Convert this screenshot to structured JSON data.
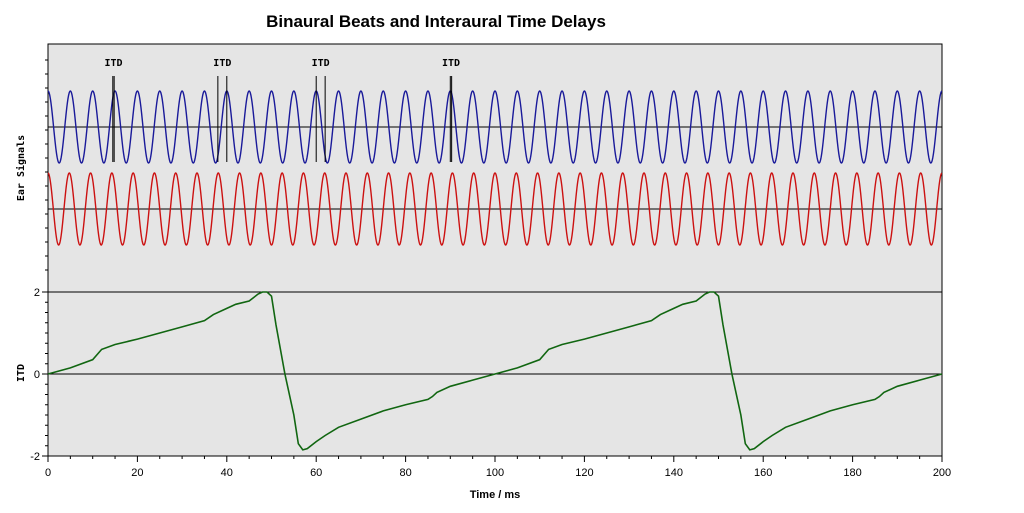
{
  "chart_data": {
    "type": "line",
    "title": "Binaural Beats and Interaural Time Delays",
    "xlabel": "Time / ms",
    "xlim": [
      0,
      200
    ],
    "x_ticks": [
      "0",
      "20",
      "40",
      "60",
      "80",
      "100",
      "120",
      "140",
      "160",
      "180",
      "200"
    ],
    "ear_signals": {
      "ylabel": "Ear Signals",
      "series": [
        {
          "color": "#1a1a9a",
          "frequency_hz": 200,
          "amplitude": 1
        },
        {
          "color": "#cc1111",
          "frequency_hz": 210,
          "amplitude": 1
        }
      ],
      "itd_markers": [
        {
          "label": "ITD",
          "time_ms": [
            14.5,
            14.8
          ]
        },
        {
          "label": "ITD",
          "time_ms": [
            38.0,
            40.0
          ]
        },
        {
          "label": "ITD",
          "time_ms": [
            60.0,
            62.0
          ]
        },
        {
          "label": "ITD",
          "time_ms": [
            90.0,
            90.3
          ]
        }
      ]
    },
    "itd_plot": {
      "ylabel": "ITD",
      "ylim": [
        -2,
        2
      ],
      "y_ticks": [
        "-2",
        "0",
        "2"
      ],
      "color": "#116611",
      "x": [
        0,
        5,
        10,
        12,
        15,
        20,
        25,
        30,
        35,
        37,
        40,
        42,
        45,
        47,
        48,
        49,
        50,
        51,
        53,
        55,
        56,
        57,
        58,
        60,
        62,
        65,
        70,
        75,
        80,
        85,
        86,
        87,
        90,
        95,
        100,
        105,
        110,
        112,
        115,
        120,
        125,
        130,
        135,
        137,
        140,
        142,
        145,
        147,
        148,
        149,
        150,
        151,
        153,
        155,
        156,
        157,
        158,
        160,
        162,
        165,
        170,
        175,
        180,
        185,
        186,
        187,
        190,
        195,
        200
      ],
      "y": [
        0,
        0.15,
        0.35,
        0.6,
        0.72,
        0.85,
        1.0,
        1.15,
        1.3,
        1.45,
        1.6,
        1.7,
        1.78,
        1.95,
        2.0,
        2.0,
        1.9,
        1.2,
        0.0,
        -1.0,
        -1.7,
        -1.85,
        -1.82,
        -1.65,
        -1.5,
        -1.3,
        -1.1,
        -0.9,
        -0.75,
        -0.62,
        -0.55,
        -0.45,
        -0.3,
        -0.15,
        0,
        0.15,
        0.35,
        0.6,
        0.72,
        0.85,
        1.0,
        1.15,
        1.3,
        1.45,
        1.6,
        1.7,
        1.78,
        1.95,
        2.0,
        2.0,
        1.9,
        1.2,
        0.0,
        -1.0,
        -1.7,
        -1.85,
        -1.82,
        -1.65,
        -1.5,
        -1.3,
        -1.1,
        -0.9,
        -0.75,
        -0.62,
        -0.55,
        -0.45,
        -0.3,
        -0.15,
        0
      ]
    },
    "grid": false,
    "legend": "none"
  }
}
